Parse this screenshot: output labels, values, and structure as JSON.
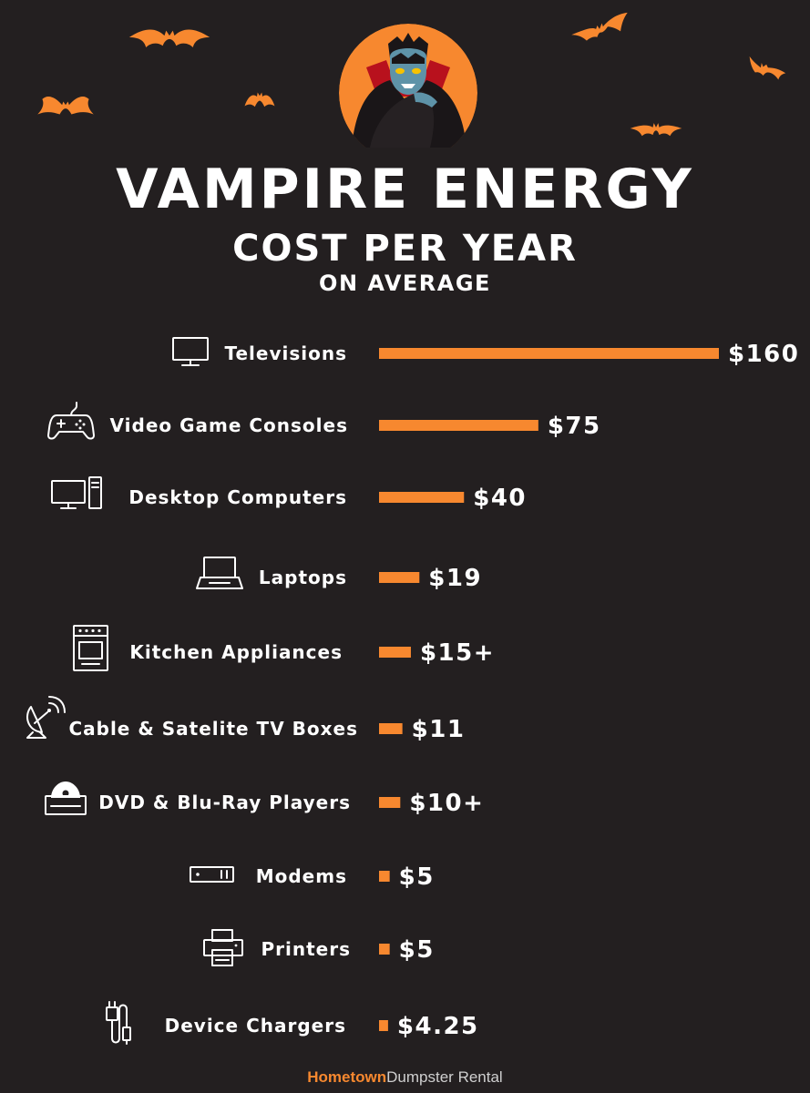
{
  "header": {
    "title": "VAMPIRE ENERGY",
    "subtitle": "COST PER YEAR",
    "subtitle2": "ON AVERAGE"
  },
  "colors": {
    "background": "#231f20",
    "accent": "#f7882f",
    "text": "#ffffff"
  },
  "chart_data": {
    "type": "bar",
    "orientation": "horizontal",
    "title": "VAMPIRE ENERGY COST PER YEAR ON AVERAGE",
    "categories": [
      "Televisions",
      "Video Game Consoles",
      "Desktop Computers",
      "Laptops",
      "Kitchen Appliances",
      "Cable & Satelite TV Boxes",
      "DVD & Blu-Ray Players",
      "Modems",
      "Printers",
      "Device Chargers"
    ],
    "values": [
      160,
      75,
      40,
      19,
      15,
      11,
      10,
      5,
      5,
      4.25
    ],
    "value_labels": [
      "$160",
      "$75",
      "$40",
      "$19",
      "$15+",
      "$11",
      "$10+",
      "$5",
      "$5",
      "$4.25"
    ],
    "icons": [
      "tv-icon",
      "game-controller-icon",
      "desktop-computer-icon",
      "laptop-icon",
      "oven-icon",
      "satellite-dish-icon",
      "dvd-player-icon",
      "modem-icon",
      "printer-icon",
      "charger-icon"
    ],
    "grid": false,
    "legend": "none"
  },
  "footer": {
    "brand_bold": "Hometown",
    "brand_rest": "Dumpster Rental"
  }
}
